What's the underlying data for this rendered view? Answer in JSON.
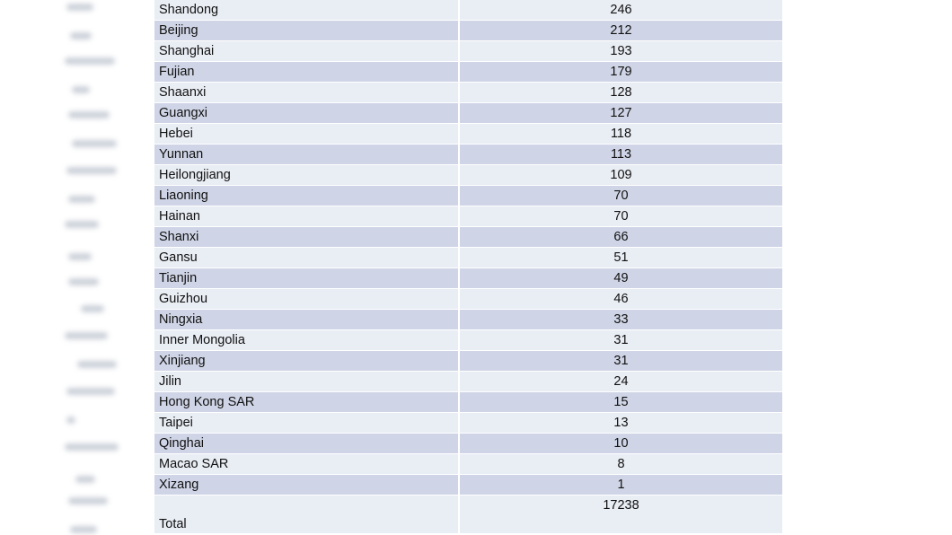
{
  "table": {
    "rows": [
      [
        "Shandong",
        246
      ],
      [
        "Beijing",
        212
      ],
      [
        "Shanghai",
        193
      ],
      [
        "Fujian",
        179
      ],
      [
        "Shaanxi",
        128
      ],
      [
        "Guangxi",
        127
      ],
      [
        "Hebei",
        118
      ],
      [
        "Yunnan",
        113
      ],
      [
        "Heilongjiang",
        109
      ],
      [
        "Liaoning",
        70
      ],
      [
        "Hainan",
        70
      ],
      [
        "Shanxi",
        66
      ],
      [
        "Gansu",
        51
      ],
      [
        "Tianjin",
        49
      ],
      [
        "Guizhou",
        46
      ],
      [
        "Ningxia",
        33
      ],
      [
        "Inner Mongolia",
        31
      ],
      [
        "Xinjiang",
        31
      ],
      [
        "Jilin",
        24
      ],
      [
        "Hong Kong SAR",
        15
      ],
      [
        "Taipei",
        13
      ],
      [
        "Qinghai",
        10
      ],
      [
        "Macao SAR",
        8
      ],
      [
        "Xizang",
        1
      ]
    ],
    "total": {
      "label": "Total",
      "value": 17238
    }
  }
}
